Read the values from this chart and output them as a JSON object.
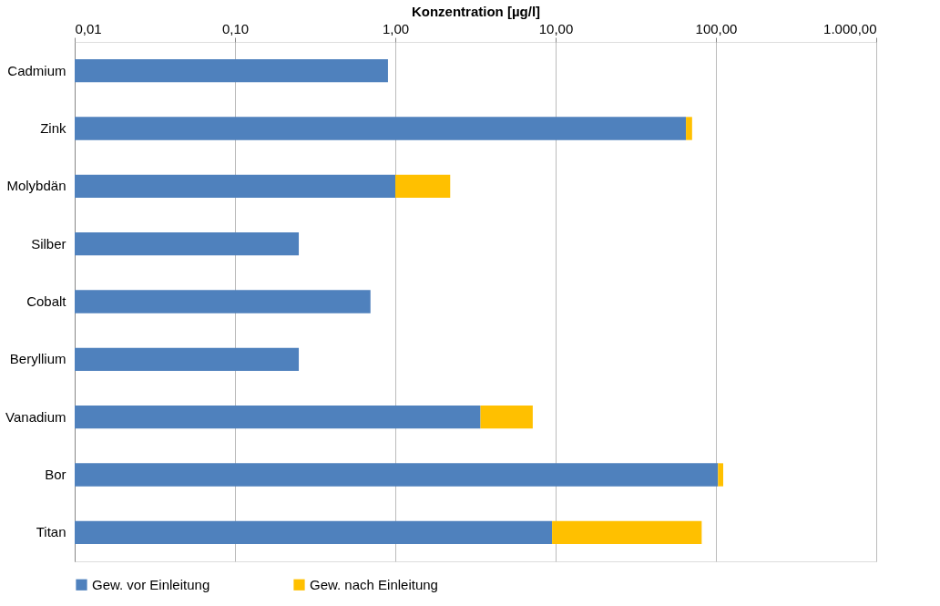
{
  "chart_data": {
    "type": "bar",
    "orientation": "horizontal",
    "stacked": true,
    "log": "x",
    "xlabel": "Konzentration [µg/l]",
    "categories": [
      "Cadmium",
      "Zink",
      "Molybdän",
      "Silber",
      "Cobalt",
      "Beryllium",
      "Vanadium",
      "Bor",
      "Titan"
    ],
    "series": [
      {
        "name": "Gew. vor Einleitung",
        "color": "#4f81bd",
        "values": [
          0.9,
          65,
          1.0,
          0.25,
          0.7,
          0.25,
          3.4,
          103,
          9.5
        ]
      },
      {
        "name": "Gew. nach Einleitung",
        "color": "#ffc000",
        "values": [
          null,
          6,
          1.2,
          null,
          null,
          null,
          3.8,
          8,
          72
        ]
      }
    ],
    "xlim": [
      0.01,
      1000
    ],
    "xticks": [
      {
        "value": 0.01,
        "label": "0,01"
      },
      {
        "value": 0.1,
        "label": "0,10"
      },
      {
        "value": 1,
        "label": "1,00"
      },
      {
        "value": 10,
        "label": "10,00"
      },
      {
        "value": 100,
        "label": "100,00"
      },
      {
        "value": 1000,
        "label": "1.000,00"
      }
    ],
    "grid": "x",
    "legend": "bottom"
  }
}
